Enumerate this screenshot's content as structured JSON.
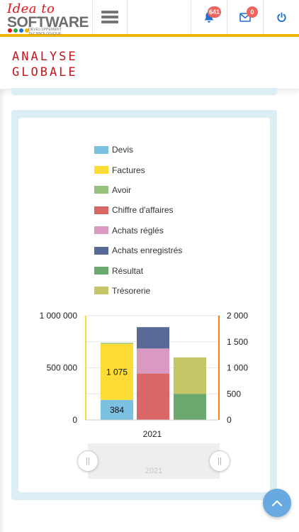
{
  "header": {
    "logo": {
      "line1": "Idea to",
      "line2": "SOFTWARE",
      "tagline": "DÉVELOPPEMENT TECHNOLOGIQUE",
      "dot_colors": [
        "#e4141b",
        "#2aa844",
        "#1f6fd0",
        "#f3b600"
      ]
    },
    "menu_icon": "hamburger-icon",
    "notifications": {
      "icon": "bell-icon",
      "count": "641",
      "color": "#1f6fd0"
    },
    "messages": {
      "icon": "envelope-icon",
      "count": "0",
      "color": "#1f6fd0"
    },
    "power": {
      "icon": "power-icon",
      "color": "#1f6fd0"
    },
    "accent_color": "#f3b600"
  },
  "page": {
    "title_line1": "Analyse",
    "title_line2": "Globale",
    "title_color": "#c8161d"
  },
  "legend": [
    {
      "label": "Devis",
      "color": "#7cc0e2"
    },
    {
      "label": "Factures",
      "color": "#fcdc34"
    },
    {
      "label": "Avoir",
      "color": "#95c37e"
    },
    {
      "label": "Chiffre d'affaires",
      "color": "#d96765"
    },
    {
      "label": "Achats réglés",
      "color": "#d999c0"
    },
    {
      "label": "Achats enregistrés",
      "color": "#596a96"
    },
    {
      "label": "Résultat",
      "color": "#6aa86e"
    },
    {
      "label": "Trésorerie",
      "color": "#c5c665"
    }
  ],
  "chart_data": {
    "type": "bar",
    "categories": [
      "2021"
    ],
    "left_axis": {
      "ticks": [
        0,
        500000,
        1000000
      ],
      "tick_labels": [
        "0",
        "500 000",
        "1 000 000"
      ],
      "ylim": [
        0,
        1000000
      ],
      "color": "#fcdc34"
    },
    "right_axis": {
      "ticks": [
        0,
        500,
        1000,
        1500,
        2000
      ],
      "tick_labels": [
        "0",
        "500",
        "1 000",
        "1 500",
        "2 000"
      ],
      "ylim": [
        0,
        2000
      ],
      "color": "#f07e1b"
    },
    "grid": true,
    "stacks": [
      {
        "segments": [
          {
            "series": "Devis",
            "value": 384,
            "axis": "right",
            "label": "384"
          },
          {
            "series": "Factures",
            "value": 1075,
            "axis": "right",
            "label": "1 075"
          },
          {
            "series": "Avoir",
            "value": 20,
            "axis": "right"
          }
        ]
      },
      {
        "segments": [
          {
            "series": "Chiffre d'affaires",
            "value": 445000,
            "axis": "left"
          },
          {
            "series": "Achats réglés",
            "value": 240000,
            "axis": "left"
          },
          {
            "series": "Achats enregistrés",
            "value": 205000,
            "axis": "left"
          }
        ]
      },
      {
        "segments": [
          {
            "series": "Résultat",
            "value": 250000,
            "axis": "left"
          },
          {
            "series": "Trésorerie",
            "value": 350000,
            "axis": "left"
          }
        ]
      }
    ]
  },
  "navigator": {
    "category": "2021",
    "left_handle": "||",
    "right_handle": "||"
  },
  "scroll_top": {
    "icon": "chevron-up-icon",
    "color": "#67a9e0"
  }
}
